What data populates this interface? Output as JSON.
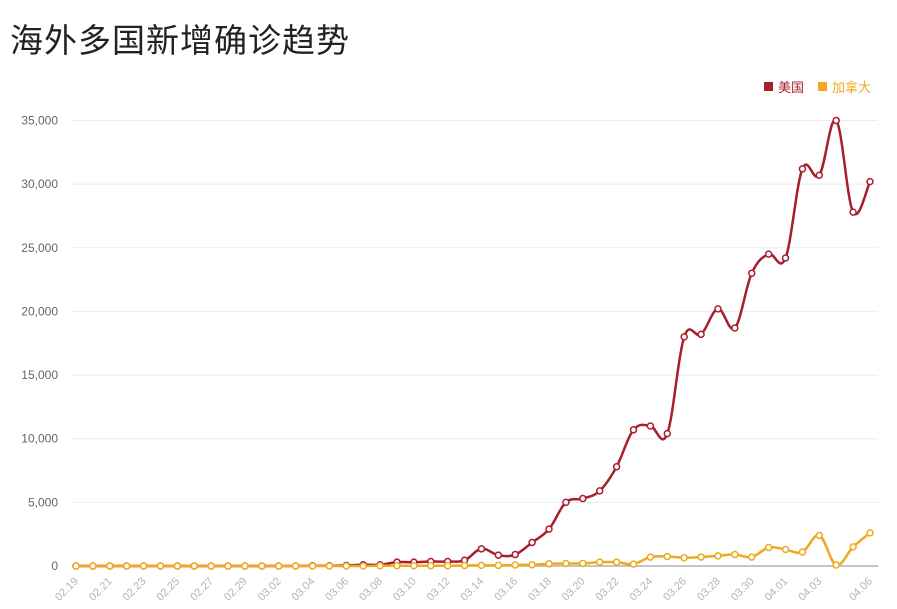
{
  "chart_data": {
    "type": "line",
    "title": "海外多国新增确诊趋势",
    "legend_position": "top-right",
    "grid": true,
    "ylim": [
      0,
      35000
    ],
    "yticks": [
      0,
      5000,
      10000,
      15000,
      20000,
      25000,
      30000,
      35000
    ],
    "ytick_labels": [
      "0",
      "5,000",
      "10,000",
      "15,000",
      "20,000",
      "25,000",
      "30,000",
      "35,000"
    ],
    "x": [
      "02.19",
      "02.20",
      "02.21",
      "02.22",
      "02.23",
      "02.24",
      "02.25",
      "02.26",
      "02.27",
      "02.28",
      "02.29",
      "03.01",
      "03.02",
      "03.03",
      "03.04",
      "03.05",
      "03.06",
      "03.07",
      "03.08",
      "03.09",
      "03.10",
      "03.11",
      "03.12",
      "03.13",
      "03.14",
      "03.15",
      "03.16",
      "03.17",
      "03.18",
      "03.19",
      "03.20",
      "03.21",
      "03.22",
      "03.23",
      "03.24",
      "03.25",
      "03.26",
      "03.27",
      "03.28",
      "03.29",
      "03.30",
      "03.31",
      "04.01",
      "04.02",
      "04.03",
      "04.04",
      "04.05",
      "04.06"
    ],
    "x_tick_labels": [
      "02.19",
      "02.21",
      "02.23",
      "02.25",
      "02.27",
      "02.29",
      "03.02",
      "03.04",
      "03.06",
      "03.08",
      "03.10",
      "03.12",
      "03.14",
      "03.16",
      "03.18",
      "03.20",
      "03.22",
      "03.24",
      "03.26",
      "03.28",
      "03.30",
      "04.01",
      "04.03",
      "04.06"
    ],
    "series": [
      {
        "name": "美国",
        "color": "#a91e2c",
        "values": [
          0,
          0,
          0,
          0,
          0,
          0,
          0,
          0,
          0,
          0,
          0,
          0,
          0,
          0,
          20,
          20,
          50,
          100,
          100,
          300,
          300,
          350,
          350,
          450,
          1350,
          850,
          900,
          1850,
          2900,
          5000,
          5300,
          5900,
          7800,
          10700,
          11000,
          10400,
          18000,
          18200,
          20200,
          18700,
          23000,
          24500,
          24200,
          31200,
          30700,
          35000,
          27800,
          30200
        ]
      },
      {
        "name": "加拿大",
        "color": "#f0a81f",
        "values": [
          0,
          0,
          0,
          0,
          0,
          0,
          0,
          0,
          0,
          0,
          0,
          0,
          0,
          0,
          0,
          0,
          0,
          0,
          20,
          20,
          20,
          20,
          20,
          40,
          50,
          50,
          80,
          100,
          180,
          200,
          200,
          300,
          300,
          150,
          700,
          750,
          650,
          700,
          800,
          900,
          700,
          1450,
          1300,
          1100,
          2400,
          80,
          1500,
          2600
        ]
      }
    ]
  }
}
